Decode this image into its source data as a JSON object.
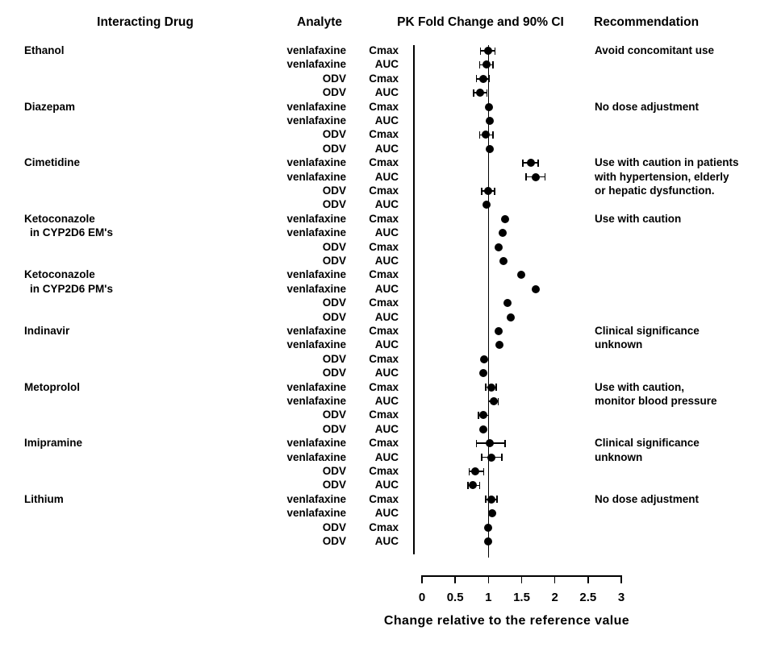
{
  "headers": {
    "col1": "Interacting Drug",
    "col2": "Analyte",
    "col3": "PK Fold Change and 90% CI",
    "col4": "Recommendation"
  },
  "chart_data": {
    "type": "forest",
    "title": "PK Fold Change and 90% CI",
    "xlabel": "Change relative to the reference value",
    "xlim": [
      0,
      3
    ],
    "xticks": [
      0,
      0.5,
      1,
      1.5,
      2,
      2.5,
      3
    ],
    "xtick_labels": [
      "0",
      "0.5",
      "1",
      "1.5",
      "2",
      "2.5",
      "3"
    ],
    "reference_line": 1,
    "colors": {
      "foreground": "#000000",
      "background": "#ffffff"
    },
    "rows": [
      {
        "drug": "Ethanol",
        "analyte": "venlafaxine",
        "param": "Cmax",
        "value": 0.99,
        "lo": 0.88,
        "hi": 1.1,
        "rec": "Avoid concomitant use"
      },
      {
        "drug": "",
        "analyte": "venlafaxine",
        "param": "AUC",
        "value": 0.97,
        "lo": 0.87,
        "hi": 1.07,
        "rec": ""
      },
      {
        "drug": "",
        "analyte": "ODV",
        "param": "Cmax",
        "value": 0.92,
        "lo": 0.82,
        "hi": 1.01,
        "rec": ""
      },
      {
        "drug": "",
        "analyte": "ODV",
        "param": "AUC",
        "value": 0.88,
        "lo": 0.78,
        "hi": 0.98,
        "rec": ""
      },
      {
        "drug": "Diazepam",
        "analyte": "venlafaxine",
        "param": "Cmax",
        "value": 1.01,
        "lo": null,
        "hi": null,
        "rec": "No dose adjustment"
      },
      {
        "drug": "",
        "analyte": "venlafaxine",
        "param": "AUC",
        "value": 1.02,
        "lo": null,
        "hi": null,
        "rec": ""
      },
      {
        "drug": "",
        "analyte": "ODV",
        "param": "Cmax",
        "value": 0.96,
        "lo": 0.87,
        "hi": 1.07,
        "rec": ""
      },
      {
        "drug": "",
        "analyte": "ODV",
        "param": "AUC",
        "value": 1.02,
        "lo": null,
        "hi": null,
        "rec": ""
      },
      {
        "drug": "Cimetidine",
        "analyte": "venlafaxine",
        "param": "Cmax",
        "value": 1.64,
        "lo": 1.52,
        "hi": 1.75,
        "rec": "Use with caution in patients"
      },
      {
        "drug": "",
        "analyte": "venlafaxine",
        "param": "AUC",
        "value": 1.71,
        "lo": 1.57,
        "hi": 1.85,
        "rec": "with hypertension, elderly"
      },
      {
        "drug": "",
        "analyte": "ODV",
        "param": "Cmax",
        "value": 1.0,
        "lo": 0.9,
        "hi": 1.09,
        "rec": "or hepatic dysfunction."
      },
      {
        "drug": "",
        "analyte": "ODV",
        "param": "AUC",
        "value": 0.97,
        "lo": null,
        "hi": null,
        "rec": ""
      },
      {
        "drug": "Ketoconazole",
        "analyte": "venlafaxine",
        "param": "Cmax",
        "value": 1.25,
        "lo": null,
        "hi": null,
        "rec": "Use with caution"
      },
      {
        "drug": "in CYP2D6 EM's",
        "indent": true,
        "analyte": "venlafaxine",
        "param": "AUC",
        "value": 1.21,
        "lo": null,
        "hi": null,
        "rec": ""
      },
      {
        "drug": "",
        "analyte": "ODV",
        "param": "Cmax",
        "value": 1.15,
        "lo": null,
        "hi": null,
        "rec": ""
      },
      {
        "drug": "",
        "analyte": "ODV",
        "param": "AUC",
        "value": 1.23,
        "lo": null,
        "hi": null,
        "rec": ""
      },
      {
        "drug": "Ketoconazole",
        "analyte": "venlafaxine",
        "param": "Cmax",
        "value": 1.49,
        "lo": null,
        "hi": null,
        "rec": ""
      },
      {
        "drug": "in CYP2D6 PM's",
        "indent": true,
        "analyte": "venlafaxine",
        "param": "AUC",
        "value": 1.71,
        "lo": null,
        "hi": null,
        "rec": ""
      },
      {
        "drug": "",
        "analyte": "ODV",
        "param": "Cmax",
        "value": 1.29,
        "lo": null,
        "hi": null,
        "rec": ""
      },
      {
        "drug": "",
        "analyte": "ODV",
        "param": "AUC",
        "value": 1.33,
        "lo": null,
        "hi": null,
        "rec": ""
      },
      {
        "drug": "Indinavir",
        "analyte": "venlafaxine",
        "param": "Cmax",
        "value": 1.15,
        "lo": null,
        "hi": null,
        "rec": "Clinical significance"
      },
      {
        "drug": "",
        "analyte": "venlafaxine",
        "param": "AUC",
        "value": 1.16,
        "lo": null,
        "hi": null,
        "rec": "unknown"
      },
      {
        "drug": "",
        "analyte": "ODV",
        "param": "Cmax",
        "value": 0.94,
        "lo": null,
        "hi": null,
        "rec": ""
      },
      {
        "drug": "",
        "analyte": "ODV",
        "param": "AUC",
        "value": 0.92,
        "lo": null,
        "hi": null,
        "rec": ""
      },
      {
        "drug": "Metoprolol",
        "analyte": "venlafaxine",
        "param": "Cmax",
        "value": 1.04,
        "lo": 0.96,
        "hi": 1.12,
        "rec": "Use with caution,"
      },
      {
        "drug": "",
        "analyte": "venlafaxine",
        "param": "AUC",
        "value": 1.08,
        "lo": 1.0,
        "hi": 1.15,
        "rec": "monitor blood pressure"
      },
      {
        "drug": "",
        "analyte": "ODV",
        "param": "Cmax",
        "value": 0.92,
        "lo": 0.85,
        "hi": 1.0,
        "rec": ""
      },
      {
        "drug": "",
        "analyte": "ODV",
        "param": "AUC",
        "value": 0.92,
        "lo": null,
        "hi": null,
        "rec": ""
      },
      {
        "drug": "Imipramine",
        "analyte": "venlafaxine",
        "param": "Cmax",
        "value": 1.02,
        "lo": 0.82,
        "hi": 1.25,
        "rec": "Clinical significance"
      },
      {
        "drug": "",
        "analyte": "venlafaxine",
        "param": "AUC",
        "value": 1.05,
        "lo": 0.9,
        "hi": 1.2,
        "rec": "unknown"
      },
      {
        "drug": "",
        "analyte": "ODV",
        "param": "Cmax",
        "value": 0.8,
        "lo": 0.71,
        "hi": 0.93,
        "rec": ""
      },
      {
        "drug": "",
        "analyte": "ODV",
        "param": "AUC",
        "value": 0.77,
        "lo": 0.69,
        "hi": 0.87,
        "rec": ""
      },
      {
        "drug": "Lithium",
        "analyte": "venlafaxine",
        "param": "Cmax",
        "value": 1.05,
        "lo": 0.96,
        "hi": 1.13,
        "rec": "No dose adjustment"
      },
      {
        "drug": "",
        "analyte": "venlafaxine",
        "param": "AUC",
        "value": 1.06,
        "lo": null,
        "hi": null,
        "rec": ""
      },
      {
        "drug": "",
        "analyte": "ODV",
        "param": "Cmax",
        "value": 1.0,
        "lo": null,
        "hi": null,
        "rec": ""
      },
      {
        "drug": "",
        "analyte": "ODV",
        "param": "AUC",
        "value": 1.0,
        "lo": null,
        "hi": null,
        "rec": ""
      }
    ]
  }
}
